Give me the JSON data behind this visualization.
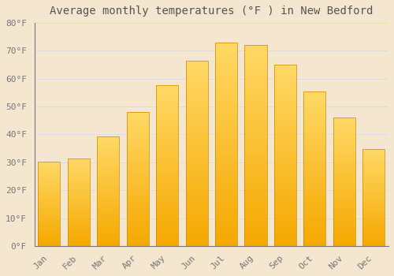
{
  "months": [
    "Jan",
    "Feb",
    "Mar",
    "Apr",
    "May",
    "Jun",
    "Jul",
    "Aug",
    "Sep",
    "Oct",
    "Nov",
    "Dec"
  ],
  "temperatures": [
    30.3,
    31.5,
    39.2,
    48.0,
    57.8,
    66.5,
    73.0,
    72.0,
    65.0,
    55.5,
    46.0,
    34.8
  ],
  "title": "Average monthly temperatures (°F ) in New Bedford",
  "ylim": [
    0,
    80
  ],
  "ytick_step": 10,
  "bar_color_bottom": "#F5A800",
  "bar_color_top": "#FFD966",
  "bar_edge_color": "#CC8800",
  "background_color": "#F5E6D0",
  "grid_color": "#DDDDDD",
  "title_fontsize": 10,
  "tick_fontsize": 8,
  "bar_width": 0.75
}
